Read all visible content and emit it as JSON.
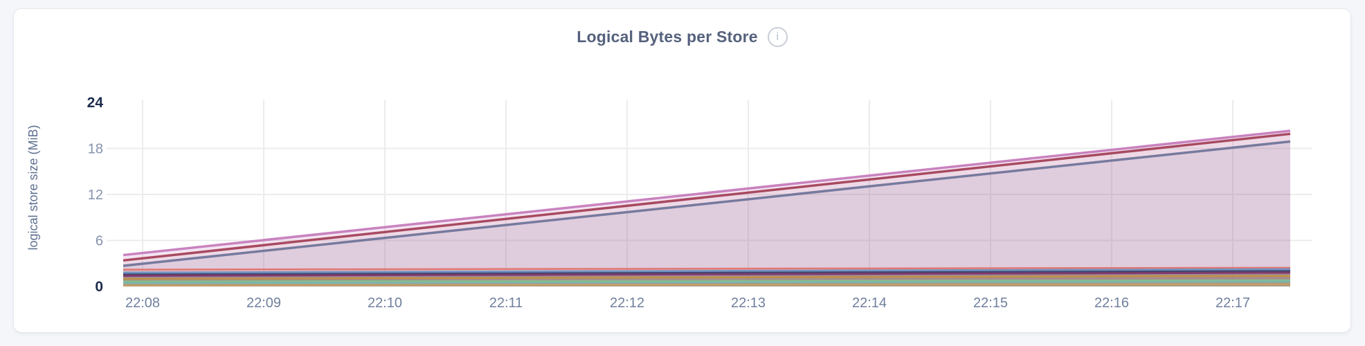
{
  "page": {
    "background": "#f4f6fa"
  },
  "card": {
    "background": "#ffffff",
    "border_color": "#e5e7ec"
  },
  "header": {
    "title": "Logical Bytes per Store",
    "info_icon": "info-circle-icon",
    "info_glyph": "i"
  },
  "chart_data": {
    "type": "area",
    "title": "Logical Bytes per Store",
    "xlabel": "",
    "ylabel": "logical store size (MiB)",
    "x_categories": [
      "22:08",
      "22:09",
      "22:10",
      "22:11",
      "22:12",
      "22:13",
      "22:14",
      "22:15",
      "22:16",
      "22:17"
    ],
    "ylim": [
      0,
      24
    ],
    "yticks": [
      0,
      6,
      12,
      18,
      24
    ],
    "bold_yticks": [
      0,
      24
    ],
    "grid": true,
    "legend_position": "none",
    "axis_colors": {
      "tick_strong": "#1d2c4e",
      "tick_muted": "#8492ac",
      "x_label": "#6f7f9d",
      "y_title": "#5f7091",
      "gridline": "#ececec"
    },
    "series": [
      {
        "id": "store-rising-1",
        "color": "#c67cbc",
        "line_width": 3.5,
        "fill_opacity": 0.2,
        "edge_values": [
          4.1,
          20.3
        ],
        "values": [
          4.3,
          6.0,
          7.7,
          9.4,
          11.1,
          12.7,
          14.4,
          16.1,
          17.8,
          19.5
        ]
      },
      {
        "id": "store-rising-2",
        "color": "#a34158",
        "line_width": 3.5,
        "fill_opacity": 0.07,
        "edge_values": [
          3.4,
          19.9
        ],
        "values": [
          3.6,
          5.3,
          7.0,
          8.7,
          10.4,
          12.2,
          13.9,
          15.6,
          17.3,
          19.0
        ]
      },
      {
        "id": "store-rising-3",
        "color": "#70759a",
        "line_width": 3.5,
        "fill_opacity": 0.12,
        "edge_values": [
          2.7,
          18.9
        ],
        "values": [
          2.9,
          4.6,
          6.3,
          8.0,
          9.6,
          11.3,
          13.0,
          14.7,
          16.4,
          18.1
        ]
      },
      {
        "id": "store-flat-1",
        "color": "#e0736c",
        "line_width": 2.5,
        "fill_opacity": 0.22,
        "edge_values": [
          2.2,
          2.45
        ],
        "values": [
          2.2,
          2.2,
          2.25,
          2.3,
          2.3,
          2.3,
          2.35,
          2.35,
          2.4,
          2.4
        ]
      },
      {
        "id": "store-flat-2",
        "color": "#6b91c2",
        "line_width": 3,
        "fill_opacity": 0.22,
        "edge_values": [
          1.8,
          2.25
        ],
        "values": [
          1.8,
          1.85,
          1.9,
          1.95,
          2.0,
          2.0,
          2.05,
          2.1,
          2.15,
          2.2
        ]
      },
      {
        "id": "store-flat-3",
        "color": "#39426d",
        "line_width": 3,
        "fill_opacity": 0.2,
        "edge_values": [
          1.55,
          2.0
        ],
        "values": [
          1.6,
          1.6,
          1.65,
          1.7,
          1.75,
          1.8,
          1.85,
          1.9,
          1.9,
          1.95
        ]
      },
      {
        "id": "store-flat-4",
        "color": "#7e3967",
        "line_width": 3,
        "fill_opacity": 0.18,
        "edge_values": [
          1.4,
          1.8
        ],
        "values": [
          1.4,
          1.45,
          1.5,
          1.5,
          1.55,
          1.6,
          1.65,
          1.7,
          1.7,
          1.75
        ]
      },
      {
        "id": "store-flat-5",
        "color": "#bd9246",
        "line_width": 3,
        "fill_opacity": 0.25,
        "edge_values": [
          1.0,
          1.4
        ],
        "values": [
          1.0,
          1.05,
          1.1,
          1.1,
          1.15,
          1.2,
          1.25,
          1.3,
          1.3,
          1.35
        ]
      },
      {
        "id": "store-flat-6",
        "color": "#88bd8b",
        "line_width": 3,
        "fill_opacity": 0.25,
        "edge_values": [
          0.65,
          0.8
        ],
        "values": [
          0.65,
          0.65,
          0.7,
          0.7,
          0.7,
          0.75,
          0.75,
          0.75,
          0.8,
          0.8
        ]
      },
      {
        "id": "store-flat-7",
        "color": "#79b7b0",
        "line_width": 2.5,
        "fill_opacity": 0.22,
        "edge_values": [
          0.45,
          0.65
        ],
        "values": [
          0.45,
          0.5,
          0.5,
          0.5,
          0.55,
          0.55,
          0.6,
          0.6,
          0.6,
          0.65
        ]
      },
      {
        "id": "store-flat-8",
        "color": "#c69d66",
        "line_width": 3,
        "fill_opacity": 0.32,
        "edge_values": [
          0.15,
          0.3
        ],
        "values": [
          0.15,
          0.15,
          0.2,
          0.2,
          0.2,
          0.25,
          0.25,
          0.25,
          0.3,
          0.3
        ]
      }
    ]
  }
}
